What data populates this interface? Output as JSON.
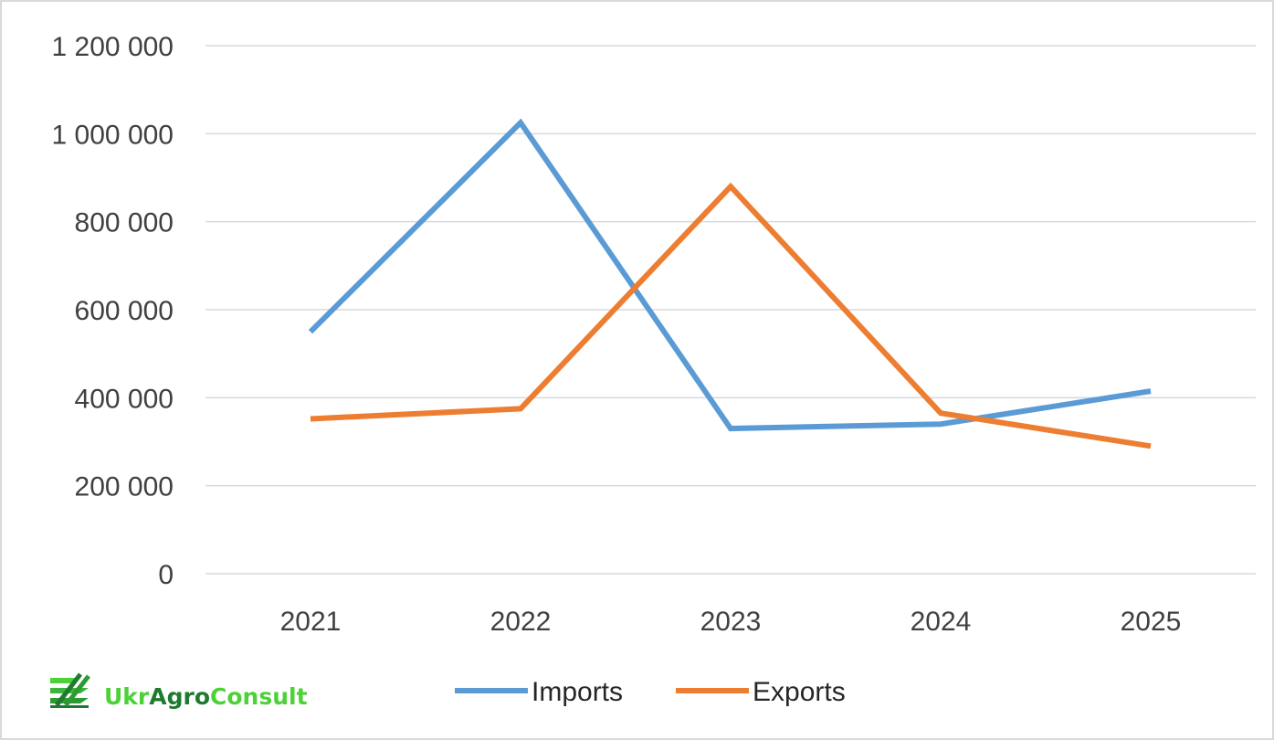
{
  "chart_data": {
    "type": "line",
    "categories": [
      "2021",
      "2022",
      "2023",
      "2024",
      "2025"
    ],
    "series": [
      {
        "name": "Imports",
        "color": "#5b9bd5",
        "values": [
          550000,
          1025000,
          330000,
          340000,
          415000
        ]
      },
      {
        "name": "Exports",
        "color": "#ed7d31",
        "values": [
          352000,
          375000,
          880000,
          365000,
          290000
        ]
      }
    ],
    "yticks": [
      0,
      200000,
      400000,
      600000,
      800000,
      1000000,
      1200000
    ],
    "ytick_labels": [
      "0",
      "200 000",
      "400 000",
      "600 000",
      "800 000",
      "1 000 000",
      "1 200 000"
    ],
    "ylim": [
      0,
      1200000
    ],
    "grid": true,
    "legend_position": "bottom",
    "title": "",
    "xlabel": "",
    "ylabel": ""
  },
  "logo": {
    "part1": "Ukr",
    "part2": "Agro",
    "part3": "Consult",
    "icon": "wheat-stripes-icon",
    "color_light": "#4cd137",
    "color_dark": "#1e7a2e"
  }
}
